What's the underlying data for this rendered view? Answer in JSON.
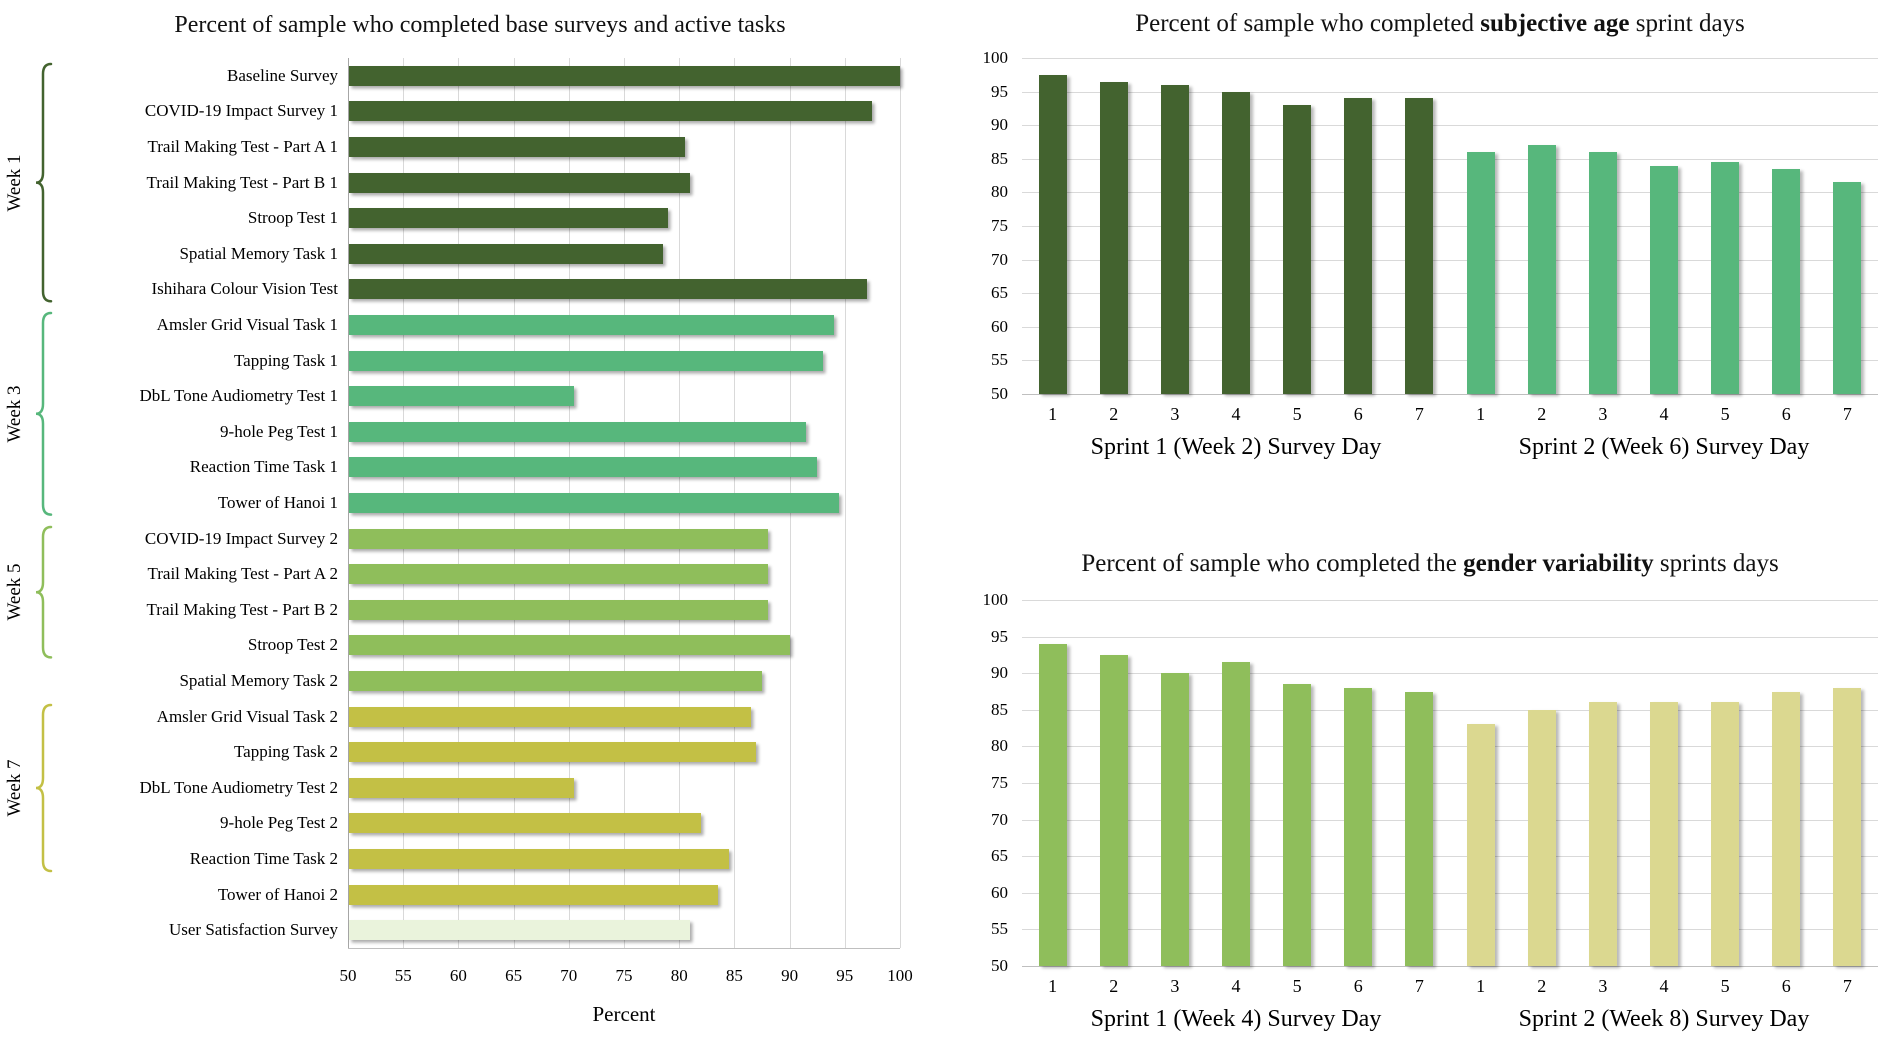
{
  "colors": {
    "dark_green": "#43632f",
    "medium_green": "#57b77c",
    "light_green": "#8fbe5b",
    "olive": "#c3c045",
    "pale_green": "#eaf3dc",
    "pale_khaki": "#dbd890",
    "gridline": "#d9d9d9",
    "axis": "#a6a6a6",
    "baseline_axis": "#bfbfbf"
  },
  "chart_data": [
    {
      "id": "base-surveys-active-tasks",
      "type": "bar",
      "orientation": "horizontal",
      "title": "Percent of sample who completed base surveys and active tasks",
      "xlabel": "Percent",
      "xlim": [
        50,
        100
      ],
      "xticks": [
        50,
        55,
        60,
        65,
        70,
        75,
        80,
        85,
        90,
        95,
        100
      ],
      "grid": true,
      "legend": false,
      "bars": [
        {
          "label": "Baseline Survey",
          "value": 100,
          "color": "dark_green"
        },
        {
          "label": "COVID-19 Impact Survey 1",
          "value": 97.5,
          "color": "dark_green"
        },
        {
          "label": "Trail Making Test - Part A 1",
          "value": 80.5,
          "color": "dark_green"
        },
        {
          "label": "Trail Making Test - Part B 1",
          "value": 81,
          "color": "dark_green"
        },
        {
          "label": "Stroop Test 1",
          "value": 79,
          "color": "dark_green"
        },
        {
          "label": "Spatial Memory Task 1",
          "value": 78.5,
          "color": "dark_green"
        },
        {
          "label": "Ishihara Colour Vision Test",
          "value": 97,
          "color": "dark_green"
        },
        {
          "label": "Amsler Grid Visual Task 1",
          "value": 94,
          "color": "medium_green"
        },
        {
          "label": "Tapping Task 1",
          "value": 93,
          "color": "medium_green"
        },
        {
          "label": "DbL Tone Audiometry Test 1",
          "value": 70.5,
          "color": "medium_green"
        },
        {
          "label": "9-hole Peg Test 1",
          "value": 91.5,
          "color": "medium_green"
        },
        {
          "label": "Reaction Time Task 1",
          "value": 92.5,
          "color": "medium_green"
        },
        {
          "label": "Tower of Hanoi 1",
          "value": 94.5,
          "color": "medium_green"
        },
        {
          "label": "COVID-19 Impact Survey 2",
          "value": 88,
          "color": "light_green"
        },
        {
          "label": "Trail Making Test - Part A 2",
          "value": 88,
          "color": "light_green"
        },
        {
          "label": "Trail Making Test - Part B 2",
          "value": 88,
          "color": "light_green"
        },
        {
          "label": "Stroop Test 2",
          "value": 90,
          "color": "light_green"
        },
        {
          "label": "Spatial Memory Task 2",
          "value": 87.5,
          "color": "light_green"
        },
        {
          "label": "Amsler Grid Visual Task 2",
          "value": 86.5,
          "color": "olive"
        },
        {
          "label": "Tapping Task 2",
          "value": 87,
          "color": "olive"
        },
        {
          "label": "DbL Tone Audiometry Test 2",
          "value": 70.5,
          "color": "olive"
        },
        {
          "label": "9-hole Peg Test 2",
          "value": 82,
          "color": "olive"
        },
        {
          "label": "Reaction Time Task 2",
          "value": 84.5,
          "color": "olive"
        },
        {
          "label": "Tower of Hanoi 2",
          "value": 83.5,
          "color": "olive"
        },
        {
          "label": "User Satisfaction Survey",
          "value": 81,
          "color": "pale_green"
        }
      ],
      "groups": [
        {
          "label": "Week 1",
          "start": 0,
          "end": 6,
          "color": "dark_green"
        },
        {
          "label": "Week 3",
          "start": 7,
          "end": 12,
          "color": "medium_green"
        },
        {
          "label": "Week 5",
          "start": 13,
          "end": 16,
          "color": "light_green"
        },
        {
          "label": "Week 7",
          "start": 18,
          "end": 22,
          "color": "olive"
        }
      ]
    },
    {
      "id": "subjective-age-sprints",
      "type": "bar",
      "orientation": "vertical",
      "title": "Percent of sample who completed subjective age sprint days",
      "title_parts": {
        "prefix": "Percent of sample who completed ",
        "bold": "subjective age",
        "suffix": " sprint days"
      },
      "ylim": [
        50,
        100
      ],
      "yticks": [
        100,
        95,
        90,
        85,
        80,
        75,
        70,
        65,
        60,
        55,
        50
      ],
      "categories": [
        "1",
        "2",
        "3",
        "4",
        "5",
        "6",
        "7",
        "1",
        "2",
        "3",
        "4",
        "5",
        "6",
        "7"
      ],
      "grid": true,
      "legend": false,
      "series": [
        {
          "name": "Sprint 1 (Week 2) Survey Day",
          "color": "dark_green",
          "values": [
            97.5,
            96.5,
            96,
            95,
            93,
            94,
            94
          ]
        },
        {
          "name": "Sprint 2 (Week 6) Survey Day",
          "color": "medium_green",
          "values": [
            86,
            87,
            86,
            84,
            84.5,
            83.5,
            81.5
          ]
        }
      ]
    },
    {
      "id": "gender-variability-sprints",
      "type": "bar",
      "orientation": "vertical",
      "title": "Percent of sample who completed the gender variability sprints days",
      "title_parts": {
        "prefix": "Percent of sample who completed the ",
        "bold": "gender variability",
        "suffix": " sprints days"
      },
      "ylim": [
        50,
        100
      ],
      "yticks": [
        100,
        95,
        90,
        85,
        80,
        75,
        70,
        65,
        60,
        55,
        50
      ],
      "categories": [
        "1",
        "2",
        "3",
        "4",
        "5",
        "6",
        "7",
        "1",
        "2",
        "3",
        "4",
        "5",
        "6",
        "7"
      ],
      "grid": true,
      "legend": false,
      "series": [
        {
          "name": "Sprint 1 (Week 4) Survey Day",
          "color": "light_green",
          "values": [
            94,
            92.5,
            90,
            91.5,
            88.5,
            88,
            87.5
          ]
        },
        {
          "name": "Sprint 2 (Week 8) Survey Day",
          "color": "pale_khaki",
          "values": [
            83,
            85,
            86,
            86,
            86,
            87.5,
            88
          ]
        }
      ]
    }
  ]
}
